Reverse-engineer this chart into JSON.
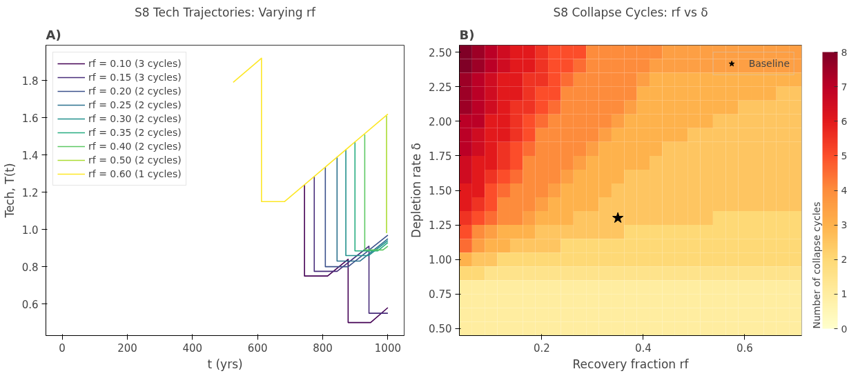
{
  "chart_data": [
    {
      "type": "line",
      "title": "S8 Tech Trajectories: Varying rf",
      "xlabel": "t (yrs)",
      "ylabel": "Tech, T(t)",
      "annotations": [
        "A)"
      ],
      "xlim": [
        -50,
        1050
      ],
      "ylim": [
        0.43,
        1.99
      ],
      "xticks": [
        0,
        200,
        400,
        600,
        800,
        1000
      ],
      "yticks": [
        0.6,
        0.8,
        {
          "value": 1.0,
          "label": "1.0"
        },
        1.2,
        1.4,
        1.6,
        1.8
      ],
      "grid": false,
      "legend": "top left",
      "line_style": "solid",
      "series": [
        {
          "name": "rf = 0.10 (3 cycles)",
          "color": "#440154",
          "x": [
            744,
            744,
            815,
            878,
            878,
            947,
            1000
          ],
          "values": [
            1.24,
            0.75,
            0.75,
            0.84,
            0.5,
            0.5,
            0.58
          ]
        },
        {
          "name": "rf = 0.15 (3 cycles)",
          "color": "#472c7a",
          "x": [
            774,
            774,
            844,
            942,
            942,
            1000
          ],
          "values": [
            1.285,
            0.775,
            0.775,
            0.91,
            0.55,
            0.55
          ]
        },
        {
          "name": "rf = 0.20 (2 cycles)",
          "color": "#3b518b",
          "x": [
            808,
            808,
            878,
            1000
          ],
          "values": [
            1.335,
            0.8,
            0.8,
            0.97
          ]
        },
        {
          "name": "rf = 0.25 (2 cycles)",
          "color": "#2c718e",
          "x": [
            844,
            844,
            914,
            1000
          ],
          "values": [
            1.39,
            0.83,
            0.83,
            0.95
          ]
        },
        {
          "name": "rf = 0.30 (2 cycles)",
          "color": "#21908d",
          "x": [
            871,
            871,
            941,
            1000
          ],
          "values": [
            1.43,
            0.86,
            0.86,
            0.94
          ]
        },
        {
          "name": "rf = 0.35 (2 cycles)",
          "color": "#27ad81",
          "x": [
            899,
            899,
            969,
            1000
          ],
          "values": [
            1.47,
            0.885,
            0.885,
            0.93
          ]
        },
        {
          "name": "rf = 0.40 (2 cycles)",
          "color": "#5cc863",
          "x": [
            929,
            929,
            985,
            1000
          ],
          "values": [
            1.51,
            0.89,
            0.89,
            0.91
          ]
        },
        {
          "name": "rf = 0.50 (2 cycles)",
          "color": "#aadc32",
          "x": [
            996,
            996
          ],
          "values": [
            1.61,
            0.98
          ]
        },
        {
          "name": "rf = 0.60 (1 cycles)",
          "color": "#fde725",
          "x": [
            525,
            612,
            612,
            683,
            1000
          ],
          "values": [
            1.79,
            1.92,
            1.15,
            1.15,
            1.62
          ]
        }
      ]
    },
    {
      "type": "heatmap",
      "title": "S8 Collapse Cycles: rf vs δ",
      "xlabel": "Recovery fraction rf",
      "ylabel": "Depletion rate δ",
      "clabel": "Number of collapse cycles",
      "annotations": [
        "B)"
      ],
      "xlim": [
        0.0375,
        0.7125
      ],
      "ylim": [
        0.45,
        2.55
      ],
      "xticks": [
        0.2,
        0.4,
        0.6
      ],
      "yticks": [
        {
          "value": 0.5,
          "label": "0.50"
        },
        0.75,
        {
          "value": 1.0,
          "label": "1.00"
        },
        1.25,
        {
          "value": 1.5,
          "label": "1.50"
        },
        1.75,
        {
          "value": 2.0,
          "label": "2.00"
        },
        2.25,
        {
          "value": 2.5,
          "label": "2.50"
        }
      ],
      "clim": [
        0,
        8
      ],
      "cticks": [
        0,
        1,
        2,
        3,
        4,
        5,
        6,
        7,
        8
      ],
      "grid": false,
      "legend": "top right",
      "marker": "star",
      "x": [
        0.05,
        0.075,
        0.1,
        0.125,
        0.15,
        0.175,
        0.2,
        0.225,
        0.25,
        0.275,
        0.3,
        0.325,
        0.35,
        0.375,
        0.4,
        0.425,
        0.45,
        0.475,
        0.5,
        0.525,
        0.55,
        0.575,
        0.6,
        0.625,
        0.65,
        0.675,
        0.7
      ],
      "y": [
        2.5,
        2.4,
        2.3,
        2.2,
        2.1,
        2.0,
        1.9,
        1.8,
        1.7,
        1.6,
        1.5,
        1.4,
        1.3,
        1.2,
        1.1,
        1.0,
        0.9,
        0.8,
        0.7,
        0.6,
        0.5
      ],
      "cells": [
        [
          8,
          7.5,
          7,
          6.5,
          6,
          6,
          5.5,
          5,
          5,
          5,
          4,
          4,
          4,
          4,
          4,
          4,
          3.5,
          3.5,
          3.5,
          3.5,
          3.5,
          3.5,
          3.5,
          3.5,
          3.5,
          3.5,
          3.5
        ],
        [
          8,
          7.5,
          7,
          6.5,
          6,
          6,
          5.5,
          5,
          5,
          4.5,
          4,
          4,
          4,
          4,
          4,
          3.5,
          3.5,
          3.5,
          3.5,
          3.5,
          3.5,
          3.5,
          3.5,
          3.5,
          3.5,
          3.5,
          3.5
        ],
        [
          7.5,
          7,
          6.5,
          6,
          6,
          5.5,
          5.5,
          5,
          4.5,
          4,
          4,
          4,
          4,
          4,
          3.5,
          3,
          3,
          3,
          3,
          3,
          3,
          3,
          3,
          3,
          3,
          3,
          3
        ],
        [
          7.5,
          7,
          6.5,
          6,
          6,
          5.5,
          5,
          5,
          4,
          4,
          4,
          4,
          4,
          4,
          3,
          3,
          3,
          3,
          3,
          3,
          3,
          3,
          3,
          3,
          3,
          2.5,
          2.5
        ],
        [
          7.5,
          7,
          6.5,
          6,
          5.5,
          5.5,
          5,
          4.5,
          4,
          4,
          4,
          4,
          4,
          3.5,
          3,
          3,
          3,
          3,
          3,
          3,
          3,
          3,
          2.5,
          2.5,
          2.5,
          2.5,
          2.5
        ],
        [
          7,
          7,
          6,
          6,
          5.5,
          5,
          4.5,
          4,
          4,
          4,
          4,
          4,
          3.5,
          3,
          3,
          3,
          3,
          3,
          3,
          3,
          2.5,
          2.5,
          2.5,
          2.5,
          2.5,
          2.5,
          2.5
        ],
        [
          7,
          6.5,
          6,
          6,
          5.5,
          5,
          4,
          4,
          4,
          4,
          4,
          3.5,
          3,
          3,
          3,
          3,
          3,
          3,
          2.5,
          2.5,
          2.5,
          2.5,
          2.5,
          2.5,
          2.5,
          2.5,
          2.5
        ],
        [
          7,
          6.5,
          6,
          5.5,
          5,
          4.5,
          4,
          4,
          4,
          4,
          3.5,
          3,
          3,
          3,
          3,
          3,
          2.5,
          2.5,
          2.5,
          2.5,
          2.5,
          2.5,
          2.5,
          2.5,
          2.5,
          2.5,
          2.5
        ],
        [
          6.5,
          6,
          6,
          5.5,
          5,
          4,
          4,
          4,
          4,
          3.5,
          3,
          3,
          3,
          3,
          3,
          2.5,
          2.5,
          2.5,
          2.5,
          2.5,
          2.5,
          2.5,
          2.5,
          2.5,
          2.5,
          2.5,
          2.5
        ],
        [
          6.5,
          6,
          5.5,
          5,
          4.5,
          4,
          4,
          4,
          3.5,
          3,
          3,
          3,
          3,
          2.5,
          2.5,
          2.5,
          2.5,
          2.5,
          2.5,
          2.5,
          2.5,
          2.5,
          2.5,
          2.5,
          2.5,
          2.5,
          2.5
        ],
        [
          6,
          6,
          5,
          4.5,
          4,
          4,
          4,
          3.5,
          3,
          3,
          3,
          3,
          2.5,
          2.5,
          2.5,
          2.5,
          2.5,
          2.5,
          2.5,
          2.5,
          2.5,
          2.5,
          2.5,
          2.5,
          2.5,
          2.5,
          2.5
        ],
        [
          6,
          5.5,
          5,
          4,
          4,
          4,
          3.5,
          3,
          3,
          3,
          3,
          2.5,
          2.5,
          2.5,
          2.5,
          2.5,
          2.5,
          2.5,
          2.5,
          2.5,
          2.5,
          2.5,
          2.5,
          2.5,
          2.5,
          2.5,
          2.5
        ],
        [
          5.5,
          5,
          4.5,
          4,
          4,
          3.5,
          3,
          3,
          3,
          2.5,
          2.5,
          2.5,
          2.5,
          2.5,
          2.5,
          2.5,
          2.5,
          2.5,
          2.5,
          2.5,
          2,
          2,
          2,
          2,
          2,
          2,
          2
        ],
        [
          5,
          4,
          3.5,
          3,
          3,
          3,
          2.5,
          2.5,
          2.5,
          2.5,
          2.5,
          2.5,
          2.5,
          2,
          2,
          2,
          2,
          2,
          2,
          2,
          2,
          2,
          2,
          2,
          2,
          2,
          2
        ],
        [
          4.5,
          3.5,
          3,
          3,
          2.5,
          2.5,
          2.5,
          2.5,
          2,
          2,
          2,
          2,
          2,
          2,
          2,
          2,
          2,
          2,
          2,
          2,
          2,
          2,
          2,
          2,
          2,
          2,
          2
        ],
        [
          3,
          2.5,
          2.5,
          2,
          2,
          2,
          2,
          2,
          2,
          2,
          2,
          2,
          2,
          2,
          2,
          2,
          2,
          2,
          2,
          2,
          2,
          2,
          2,
          2,
          2,
          2,
          2
        ],
        [
          2,
          2,
          1.5,
          1.5,
          1.5,
          1.5,
          1.5,
          1.5,
          1.5,
          1.5,
          1.5,
          1.5,
          1.5,
          1.5,
          1.5,
          1.5,
          1.5,
          1.5,
          1.5,
          1.5,
          1.5,
          1.5,
          1.5,
          1.5,
          1.5,
          1.5,
          1.5
        ],
        [
          1,
          1,
          1,
          1,
          1,
          1,
          1,
          1,
          1,
          1,
          1,
          1,
          1,
          1,
          1,
          1,
          1,
          1,
          1,
          1,
          1,
          1,
          1,
          1,
          1,
          1,
          1
        ],
        [
          1,
          1,
          1,
          1,
          1,
          1,
          1,
          1,
          1,
          1,
          1,
          1,
          1,
          1,
          1,
          1,
          1,
          1,
          1,
          1,
          1,
          1,
          1,
          1,
          1,
          1,
          1
        ],
        [
          1,
          1,
          1,
          1,
          1,
          1,
          1,
          1,
          1,
          1,
          1,
          1,
          1,
          1,
          1,
          1,
          1,
          1,
          1,
          1,
          1,
          1,
          1,
          1,
          1,
          1,
          1
        ],
        [
          1,
          1,
          1,
          1,
          1,
          1,
          1,
          1,
          1,
          1,
          1,
          1,
          1,
          1,
          1,
          1,
          1,
          1,
          1,
          1,
          1,
          1,
          1,
          1,
          1,
          1,
          1
        ]
      ],
      "series": [
        {
          "name": "Baseline",
          "type": "scatter",
          "color": "#000000",
          "x": [
            0.35
          ],
          "values": [
            1.3
          ]
        }
      ]
    }
  ]
}
